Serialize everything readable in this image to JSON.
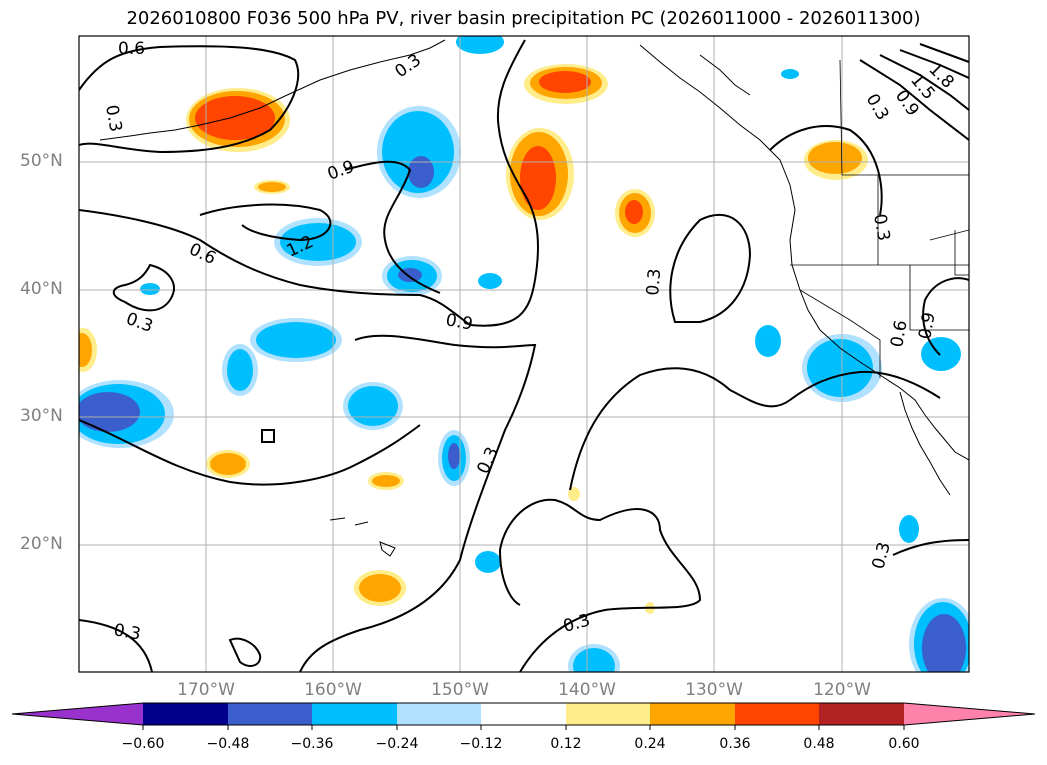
{
  "title": "2026010800 F036 500 hPa PV, river basin precipitation PC (2026011000 - 2026011300)",
  "lat_ticks": [
    "50°N",
    "40°N",
    "30°N",
    "20°N"
  ],
  "lon_ticks": [
    "170°W",
    "160°W",
    "150°W",
    "140°W",
    "130°W",
    "120°W"
  ],
  "contour_labels": [
    "0.6",
    "0.3",
    "0.9",
    "1.2",
    "0.6",
    "0.3",
    "0.9",
    "0.3",
    "0.3",
    "0.3",
    "0.3",
    "0.3",
    "0.6",
    "0.9",
    "0.3",
    "0.3",
    "0.9",
    "1.5",
    "1.8",
    "0.3"
  ],
  "colorbar": {
    "ticks": [
      "−0.60",
      "−0.48",
      "−0.36",
      "−0.24",
      "−0.12",
      "0.12",
      "0.24",
      "0.36",
      "0.48",
      "0.60"
    ],
    "colors": [
      "#9932cc",
      "#00008b",
      "#3a5fcd",
      "#00bfff",
      "#b0e2ff",
      "#ffffff",
      "#ffec8b",
      "#ffa500",
      "#ff4500",
      "#b22222",
      "#ff82ab"
    ]
  },
  "chart_data": {
    "type": "map",
    "title": "2026010800 F036 500 hPa PV, river basin precipitation PC (2026011000 - 2026011300)",
    "extent": {
      "lon_min": -180,
      "lon_max": -110,
      "lat_min": 10,
      "lat_max": 60
    },
    "variables": [
      "500 hPa PV (contours)",
      "river basin precipitation PC (shaded)"
    ],
    "contour_levels": [
      0.3,
      0.6,
      0.9,
      1.2,
      1.5,
      1.8
    ],
    "shading_levels": [
      -0.6,
      -0.48,
      -0.36,
      -0.24,
      -0.12,
      0.12,
      0.24,
      0.36,
      0.48,
      0.6
    ]
  }
}
